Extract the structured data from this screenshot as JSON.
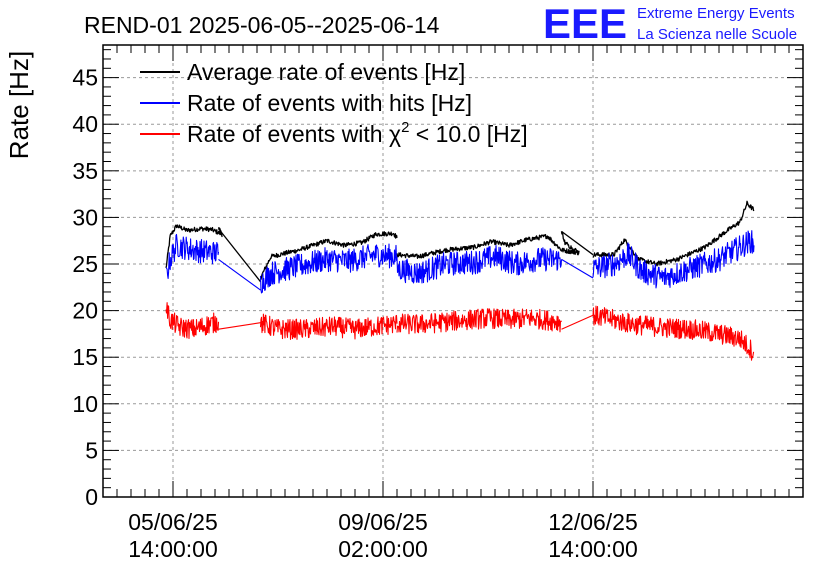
{
  "title": "REND-01 2025-06-05--2025-06-14",
  "logo": {
    "mark": "EEE",
    "line1": "Extreme Energy Events",
    "line2": "La Scienza nelle Scuole",
    "color": "#1a1aff"
  },
  "chart_data": {
    "type": "line",
    "ylabel": "Rate [Hz]",
    "ylim": [
      0,
      48.5
    ],
    "yticks": [
      0,
      5,
      10,
      15,
      20,
      25,
      30,
      35,
      40,
      45
    ],
    "xlim": [
      0,
      10
    ],
    "xticks": [
      {
        "x": 1.0,
        "line1": "05/06/25",
        "line2": "14:00:00"
      },
      {
        "x": 4.0,
        "line1": "09/06/25",
        "line2": "02:00:00"
      },
      {
        "x": 7.0,
        "line1": "12/06/25",
        "line2": "14:00:00"
      }
    ],
    "grid": true,
    "legend_position": "top-left",
    "legend": [
      {
        "label": "Average rate of events [Hz]",
        "color": "#000000"
      },
      {
        "label": "Rate of events with hits [Hz]",
        "color": "#0000ff"
      },
      {
        "label_pre": "Rate of events with ",
        "label_chi": "χ",
        "label_sup": "2",
        "label_post": " < 10.0 [Hz]",
        "color": "#ff0000"
      }
    ],
    "series": [
      {
        "name": "Average rate of events [Hz]",
        "color": "#000000",
        "noise": 0.25,
        "segments": [
          [
            [
              0.9,
              24.5
            ],
            [
              0.96,
              28
            ],
            [
              1.05,
              29.1
            ],
            [
              1.2,
              28.6
            ],
            [
              1.4,
              28.8
            ],
            [
              1.55,
              28.7
            ],
            [
              1.7,
              28.2
            ],
            [
              1.65,
              28.8
            ]
          ],
          [
            [
              1.65,
              28.8
            ],
            [
              2.25,
              23.1
            ]
          ],
          [
            [
              2.25,
              23.5
            ],
            [
              2.4,
              25.8
            ],
            [
              2.8,
              26.5
            ],
            [
              3.2,
              27.5
            ],
            [
              3.45,
              27.0
            ],
            [
              3.7,
              27.3
            ],
            [
              3.9,
              28.2
            ],
            [
              4.15,
              28.3
            ],
            [
              4.2,
              27.8
            ]
          ],
          [
            [
              4.2,
              26.0
            ],
            [
              4.5,
              25.8
            ],
            [
              4.9,
              26.5
            ],
            [
              5.3,
              26.8
            ],
            [
              5.55,
              27.4
            ],
            [
              5.8,
              27.0
            ],
            [
              6.05,
              27.6
            ],
            [
              6.35,
              28.0
            ],
            [
              6.55,
              26.5
            ],
            [
              6.8,
              26.2
            ],
            [
              6.6,
              27.3
            ],
            [
              6.55,
              28.5
            ]
          ],
          [
            [
              6.55,
              28.5
            ],
            [
              7.0,
              26.0
            ]
          ],
          [
            [
              7.0,
              26.0
            ],
            [
              7.3,
              26.0
            ],
            [
              7.45,
              27.6
            ],
            [
              7.65,
              25.5
            ],
            [
              7.9,
              25.0
            ],
            [
              8.2,
              25.5
            ],
            [
              8.6,
              26.8
            ],
            [
              8.9,
              28.5
            ],
            [
              9.1,
              29.5
            ],
            [
              9.2,
              31.5
            ],
            [
              9.3,
              30.8
            ]
          ]
        ]
      },
      {
        "name": "Rate of events with hits [Hz]",
        "color": "#0000ff",
        "noise": 1.3,
        "segments": [
          [
            [
              0.9,
              23.5
            ],
            [
              0.96,
              25.5
            ],
            [
              1.05,
              27.0
            ],
            [
              1.3,
              26.5
            ],
            [
              1.6,
              26.2
            ],
            [
              1.65,
              26.3
            ]
          ],
          [
            [
              1.65,
              25.5
            ],
            [
              2.25,
              22.2
            ]
          ],
          [
            [
              2.25,
              23.0
            ],
            [
              2.4,
              24.0
            ],
            [
              2.8,
              24.8
            ],
            [
              3.2,
              25.5
            ],
            [
              3.5,
              25.3
            ],
            [
              3.9,
              26.0
            ],
            [
              4.2,
              25.8
            ]
          ],
          [
            [
              4.2,
              24.5
            ],
            [
              4.5,
              24.0
            ],
            [
              4.9,
              25.0
            ],
            [
              5.3,
              25.2
            ],
            [
              5.6,
              25.8
            ],
            [
              5.9,
              25.0
            ],
            [
              6.2,
              25.5
            ],
            [
              6.55,
              25.5
            ]
          ],
          [
            [
              6.55,
              25.5
            ],
            [
              7.0,
              23.5
            ]
          ],
          [
            [
              7.0,
              24.5
            ],
            [
              7.3,
              25.0
            ],
            [
              7.5,
              26.0
            ],
            [
              7.7,
              24.2
            ],
            [
              8.0,
              23.5
            ],
            [
              8.4,
              24.5
            ],
            [
              8.8,
              25.5
            ],
            [
              9.1,
              26.8
            ],
            [
              9.25,
              27.5
            ],
            [
              9.3,
              27.0
            ]
          ]
        ]
      },
      {
        "name": "Rate of events with χ2 < 10.0 [Hz]",
        "color": "#ff0000",
        "noise": 1.1,
        "segments": [
          [
            [
              0.9,
              20.5
            ],
            [
              0.96,
              19.0
            ],
            [
              1.1,
              18.2
            ],
            [
              1.3,
              18.0
            ],
            [
              1.5,
              18.5
            ],
            [
              1.65,
              18.8
            ]
          ],
          [
            [
              1.65,
              18.0
            ],
            [
              2.25,
              18.7
            ]
          ],
          [
            [
              2.25,
              18.7
            ],
            [
              2.5,
              18.0
            ],
            [
              2.9,
              18.0
            ],
            [
              3.3,
              18.3
            ],
            [
              3.6,
              18.0
            ],
            [
              3.9,
              18.3
            ],
            [
              4.2,
              18.6
            ]
          ],
          [
            [
              4.2,
              18.6
            ],
            [
              4.5,
              18.5
            ],
            [
              4.9,
              18.8
            ],
            [
              5.2,
              19.0
            ],
            [
              5.5,
              19.2
            ],
            [
              5.8,
              19.0
            ],
            [
              6.1,
              19.2
            ],
            [
              6.55,
              18.8
            ]
          ],
          [
            [
              6.55,
              18.0
            ],
            [
              7.0,
              19.5
            ]
          ],
          [
            [
              7.0,
              19.5
            ],
            [
              7.3,
              19.0
            ],
            [
              7.6,
              18.5
            ],
            [
              8.0,
              18.2
            ],
            [
              8.4,
              18.0
            ],
            [
              8.8,
              17.5
            ],
            [
              9.1,
              17.0
            ],
            [
              9.3,
              15.5
            ]
          ]
        ]
      }
    ]
  }
}
